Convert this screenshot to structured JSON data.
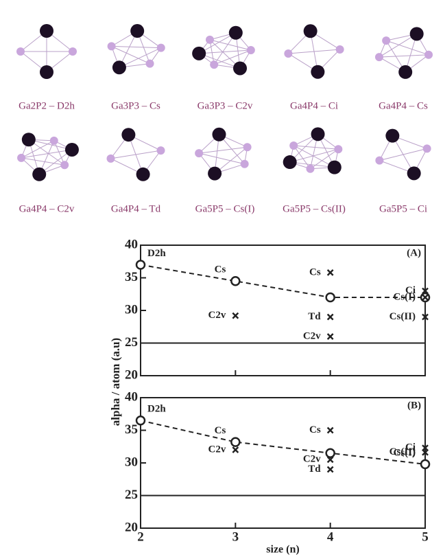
{
  "structures": [
    {
      "label": "Ga2P2 – D2h"
    },
    {
      "label": "Ga3P3 – Cs"
    },
    {
      "label": "Ga3P3 – C2v"
    },
    {
      "label": "Ga4P4 – Ci"
    },
    {
      "label": "Ga4P4 – Cs"
    },
    {
      "label": "Ga4P4 – C2v"
    },
    {
      "label": "Ga4P4 – Td"
    },
    {
      "label": "Ga5P5 – Cs(I)"
    },
    {
      "label": "Ga5P5 – Cs(II)"
    },
    {
      "label": "Ga5P5 – Ci"
    }
  ],
  "y_label": "alpha / atom (a.u)",
  "chart_data": [
    {
      "type": "line",
      "panel_label": "(A)",
      "xlim": [
        2,
        5
      ],
      "ylim": [
        20,
        40
      ],
      "yticks": [
        20,
        25,
        30,
        35,
        40
      ],
      "xticks": [
        2,
        3,
        4,
        5
      ],
      "reference_line": 25,
      "series": [
        {
          "marker": "circle",
          "color": "#222222",
          "x": [
            2,
            3,
            4,
            5
          ],
          "values": [
            37,
            34.5,
            32,
            32
          ],
          "labels": [
            "D2h",
            "Cs",
            null,
            null
          ]
        },
        {
          "marker": "cross",
          "color": "#222222",
          "x": [
            3,
            4,
            4,
            4,
            5,
            5,
            5
          ],
          "values": [
            29.2,
            35.8,
            29,
            26,
            33,
            32,
            29
          ],
          "labels": [
            "C2v",
            "Cs",
            "Td",
            "C2v",
            "Ci",
            "Cs(I)",
            "Cs(II)"
          ]
        }
      ]
    },
    {
      "type": "line",
      "panel_label": "(B)",
      "xlim": [
        2,
        5
      ],
      "ylim": [
        20,
        40
      ],
      "yticks": [
        20,
        25,
        30,
        35,
        40
      ],
      "xticks": [
        2,
        3,
        4,
        5
      ],
      "reference_line": 25,
      "x_label": "size (n)",
      "series": [
        {
          "marker": "circle",
          "color": "#222222",
          "x": [
            2,
            3,
            4,
            5
          ],
          "values": [
            36.5,
            33.2,
            31.5,
            29.8
          ],
          "labels": [
            "D2h",
            "Cs",
            null,
            "Cs(I)"
          ]
        },
        {
          "marker": "cross",
          "color": "#222222",
          "x": [
            3,
            4,
            4,
            4,
            5,
            5
          ],
          "values": [
            32,
            35,
            30.5,
            29,
            32.3,
            31.6
          ],
          "labels": [
            "C2v",
            "Cs",
            "C2v",
            "Td",
            "Ci",
            "Cs(II)"
          ]
        }
      ]
    }
  ]
}
